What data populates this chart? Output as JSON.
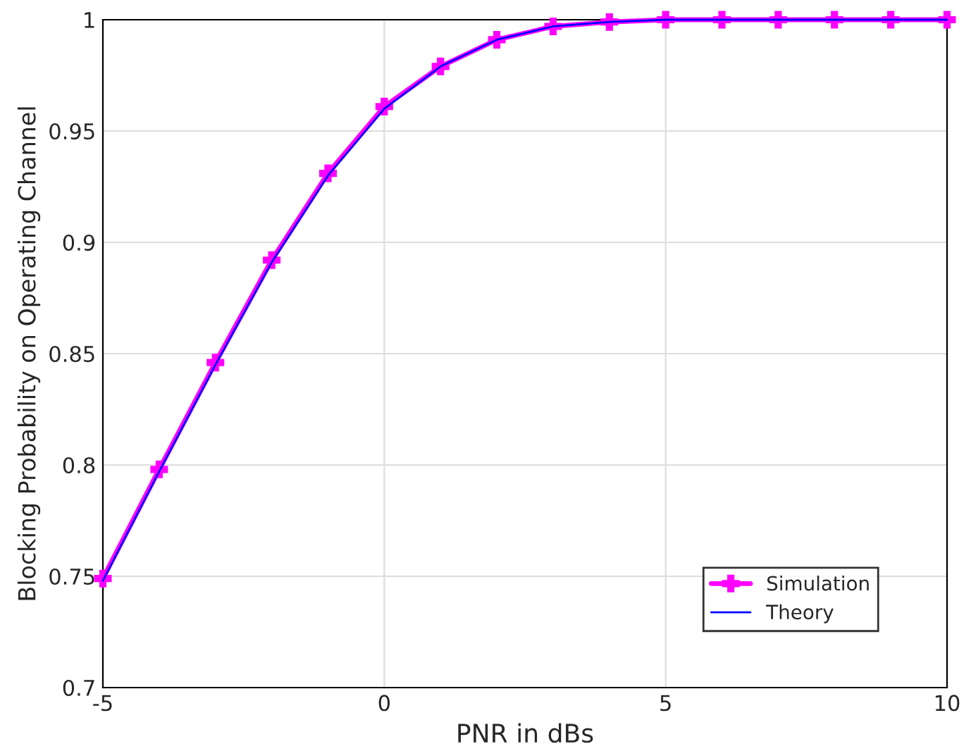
{
  "chart_data": {
    "type": "line",
    "xlabel": "PNR in dBs",
    "ylabel": "Blocking Probability on Operating Channel",
    "x": [
      -5,
      -4,
      -3,
      -2,
      -1,
      0,
      1,
      2,
      3,
      4,
      5,
      6,
      7,
      8,
      9,
      10
    ],
    "series": [
      {
        "name": "Simulation",
        "color": "#ff00ff",
        "marker": "cross",
        "values": [
          0.749,
          0.798,
          0.846,
          0.892,
          0.931,
          0.961,
          0.979,
          0.991,
          0.997,
          0.999,
          1,
          1,
          1,
          1,
          1,
          1
        ]
      },
      {
        "name": "Theory",
        "color": "#0000ff",
        "marker": "none",
        "values": [
          0.748,
          0.797,
          0.845,
          0.891,
          0.93,
          0.96,
          0.979,
          0.991,
          0.997,
          0.999,
          1,
          1,
          1,
          1,
          1,
          1
        ]
      }
    ],
    "xlim": [
      -5,
      10
    ],
    "xticks": [
      -5,
      0,
      5,
      10
    ],
    "ylim": [
      0.7,
      1
    ],
    "yticks": [
      0.7,
      0.75,
      0.8,
      0.85,
      0.9,
      0.95,
      1
    ],
    "grid": true,
    "legend": "bottom right",
    "line_style": "solid"
  }
}
